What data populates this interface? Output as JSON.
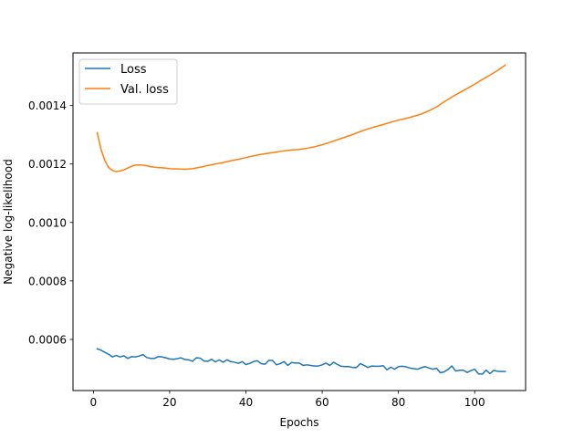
{
  "chart_data": {
    "type": "line",
    "title": "",
    "xlabel": "Epochs",
    "ylabel": "Negative log-likelihood",
    "xlim": [
      -5.35,
      113.35
    ],
    "ylim": [
      0.000425,
      0.00158
    ],
    "xticks": [
      0,
      20,
      40,
      60,
      80,
      100
    ],
    "yticks": [
      0.0006,
      0.0008,
      0.001,
      0.0012,
      0.0014
    ],
    "ytick_labels": [
      "0.0006",
      "0.0008",
      "0.0010",
      "0.0012",
      "0.0014"
    ],
    "grid": false,
    "legend_position": "top-left",
    "series": [
      {
        "name": "Loss",
        "color": "#1f77b4",
        "x": [
          1,
          2,
          3,
          4,
          5,
          6,
          7,
          8,
          9,
          10,
          11,
          12,
          13,
          14,
          15,
          16,
          17,
          18,
          19,
          20,
          21,
          22,
          23,
          24,
          25,
          26,
          27,
          28,
          29,
          30,
          31,
          32,
          33,
          34,
          35,
          36,
          37,
          38,
          39,
          40,
          41,
          42,
          43,
          44,
          45,
          46,
          47,
          48,
          49,
          50,
          51,
          52,
          53,
          54,
          55,
          56,
          57,
          58,
          59,
          60,
          61,
          62,
          63,
          64,
          65,
          66,
          67,
          68,
          69,
          70,
          71,
          72,
          73,
          74,
          75,
          76,
          77,
          78,
          79,
          80,
          81,
          82,
          83,
          84,
          85,
          86,
          87,
          88,
          89,
          90,
          91,
          92,
          93,
          94,
          95,
          96,
          97,
          98,
          99,
          100,
          101,
          102,
          103,
          104,
          105,
          106,
          107,
          108
        ],
        "y": [
          0.000568,
          0.000563,
          0.000556,
          0.000549,
          0.00054,
          0.000545,
          0.00054,
          0.000544,
          0.000535,
          0.000541,
          0.00054,
          0.000543,
          0.000548,
          0.000538,
          0.000535,
          0.000535,
          0.000541,
          0.00054,
          0.000537,
          0.000533,
          0.000532,
          0.000534,
          0.000537,
          0.000531,
          0.00053,
          0.000525,
          0.000537,
          0.000536,
          0.000526,
          0.000525,
          0.000532,
          0.000523,
          0.00053,
          0.000522,
          0.00053,
          0.000524,
          0.000522,
          0.000518,
          0.000524,
          0.000514,
          0.000518,
          0.000524,
          0.000527,
          0.000517,
          0.000515,
          0.000528,
          0.000528,
          0.000513,
          0.000517,
          0.000524,
          0.000511,
          0.000521,
          0.000519,
          0.000519,
          0.000511,
          0.000513,
          0.000511,
          0.000509,
          0.000509,
          0.000513,
          0.000519,
          0.000511,
          0.000522,
          0.000514,
          0.000508,
          0.000507,
          0.000507,
          0.000504,
          0.000504,
          0.000517,
          0.000511,
          0.000504,
          0.000509,
          0.000508,
          0.000508,
          0.00051,
          0.000496,
          0.000505,
          0.000498,
          0.000507,
          0.000508,
          0.000506,
          0.000502,
          0.0005,
          0.000498,
          0.000503,
          0.000507,
          0.000502,
          0.000498,
          0.000501,
          0.000486,
          0.000489,
          0.000497,
          0.000509,
          0.000492,
          0.000494,
          0.000495,
          0.000487,
          0.000493,
          0.000498,
          0.000482,
          0.000481,
          0.000495,
          0.000483,
          0.000494,
          0.000491,
          0.00049,
          0.00049
        ]
      },
      {
        "name": "Val. loss",
        "color": "#ff7f0e",
        "x": [
          1,
          2,
          3,
          4,
          5,
          6,
          7,
          8,
          9,
          10,
          11,
          12,
          13,
          14,
          15,
          16,
          17,
          18,
          19,
          20,
          22,
          24,
          26,
          28,
          30,
          32,
          34,
          36,
          38,
          40,
          42,
          44,
          46,
          48,
          50,
          52,
          54,
          56,
          58,
          60,
          62,
          64,
          66,
          68,
          70,
          72,
          74,
          76,
          78,
          80,
          82,
          84,
          86,
          88,
          90,
          92,
          94,
          96,
          98,
          100,
          102,
          104,
          106,
          108
        ],
        "y": [
          0.001307,
          0.00125,
          0.001212,
          0.001188,
          0.001178,
          0.001174,
          0.001176,
          0.00118,
          0.001186,
          0.001192,
          0.001196,
          0.001197,
          0.001196,
          0.001194,
          0.001191,
          0.001189,
          0.001188,
          0.001187,
          0.001186,
          0.001184,
          0.001183,
          0.001182,
          0.001184,
          0.001189,
          0.001195,
          0.0012,
          0.001205,
          0.001211,
          0.001216,
          0.001222,
          0.001228,
          0.001233,
          0.001237,
          0.001241,
          0.001245,
          0.001248,
          0.00125,
          0.001254,
          0.001259,
          0.001266,
          0.001274,
          0.001283,
          0.001292,
          0.001301,
          0.001311,
          0.00132,
          0.001328,
          0.001335,
          0.001343,
          0.00135,
          0.001356,
          0.001363,
          0.001371,
          0.001382,
          0.001395,
          0.001413,
          0.001429,
          0.001444,
          0.001458,
          0.001473,
          0.001489,
          0.001504,
          0.00152,
          0.001538
        ]
      }
    ]
  }
}
